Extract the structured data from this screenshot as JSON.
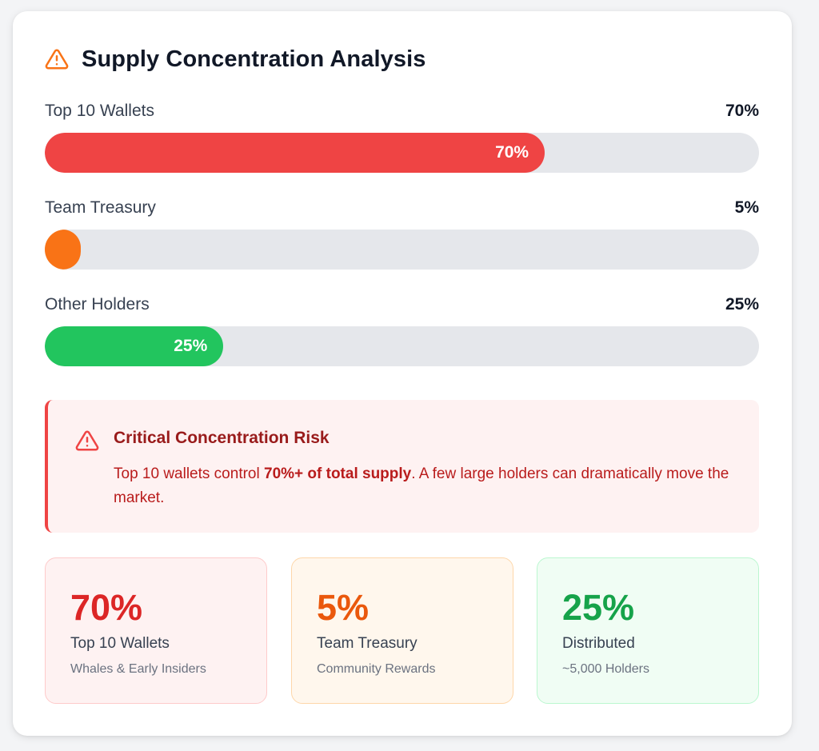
{
  "header": {
    "title": "Supply Concentration Analysis",
    "icon": "warning-triangle-icon",
    "icon_color": "#f97316"
  },
  "bars": [
    {
      "label": "Top 10 Wallets",
      "value_text": "70%",
      "inner_text": "70%",
      "percent": 70,
      "color": "#ef4444"
    },
    {
      "label": "Team Treasury",
      "value_text": "5%",
      "inner_text": "",
      "percent": 5,
      "color": "#f97316"
    },
    {
      "label": "Other Holders",
      "value_text": "25%",
      "inner_text": "25%",
      "percent": 25,
      "color": "#22c55e"
    }
  ],
  "alert": {
    "icon": "warning-triangle-icon",
    "title": "Critical Concentration Risk",
    "body_prefix": "Top 10 wallets control ",
    "body_bold": "70%+ of total supply",
    "body_suffix": ". A few large holders can dramatically move the market.",
    "accent": "#ef4444",
    "background": "#fef2f2"
  },
  "stats": [
    {
      "value": "70%",
      "label": "Top 10 Wallets",
      "sub": "Whales & Early Insiders",
      "value_color": "#dc2626",
      "bg": "#fef2f2",
      "border": "#fecaca"
    },
    {
      "value": "5%",
      "label": "Team Treasury",
      "sub": "Community Rewards",
      "value_color": "#ea580c",
      "bg": "#fff7ed",
      "border": "#fed7aa"
    },
    {
      "value": "25%",
      "label": "Distributed",
      "sub": "~5,000 Holders",
      "value_color": "#16a34a",
      "bg": "#f0fdf4",
      "border": "#bbf7d0"
    }
  ]
}
